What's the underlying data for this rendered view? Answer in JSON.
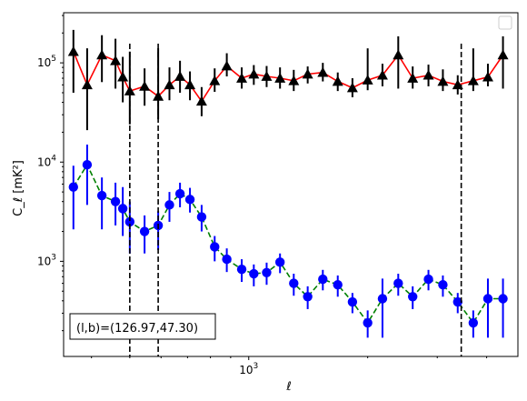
{
  "chart_data": {
    "type": "line",
    "xscale": "log",
    "yscale": "log",
    "xlim": [
      340,
      4800
    ],
    "ylim": [
      110,
      320000
    ],
    "xlabel": "ℓ",
    "ylabel": "C_ℓ  [mK²]",
    "x_ticklabels": [
      {
        "value": 1000,
        "base": "10",
        "exp": "3"
      }
    ],
    "y_ticklabels": [
      {
        "value": 1000,
        "base": "10",
        "exp": "3"
      },
      {
        "value": 10000,
        "base": "10",
        "exp": "4"
      },
      {
        "value": 100000,
        "base": "10",
        "exp": "5"
      }
    ],
    "vlines": [
      500,
      590,
      3450
    ],
    "legend": {
      "location": "top-right",
      "entries": []
    },
    "annotation": "(l,b)=(126.97,47.30)",
    "annotation_location": "bottom-left",
    "series": [
      {
        "color": "#ff0000",
        "marker": "triangle",
        "marker_color": "#000000",
        "linestyle": "solid",
        "x": [
          360,
          390,
          425,
          460,
          480,
          500,
          545,
          590,
          630,
          670,
          710,
          760,
          820,
          880,
          960,
          1030,
          1110,
          1200,
          1300,
          1410,
          1540,
          1680,
          1830,
          2000,
          2180,
          2390,
          2600,
          2850,
          3100,
          3380,
          3700,
          4030,
          4400
        ],
        "y": [
          130000,
          60000,
          120000,
          105000,
          72000,
          52000,
          58000,
          46000,
          60000,
          73000,
          60000,
          41000,
          66000,
          93000,
          70000,
          77000,
          73000,
          70000,
          66000,
          77000,
          80000,
          65000,
          56000,
          67000,
          75000,
          120000,
          70000,
          75000,
          65000,
          60000,
          66000,
          72000,
          120000
        ],
        "yerr_low": [
          50000,
          21000,
          64000,
          55000,
          40000,
          24000,
          37000,
          27000,
          42000,
          50000,
          42000,
          29000,
          51000,
          73000,
          55000,
          60000,
          57000,
          55000,
          52000,
          62000,
          65000,
          52000,
          45000,
          53000,
          58000,
          55000,
          55000,
          58000,
          52000,
          48000,
          52000,
          58000,
          55000
        ],
        "yerr_high": [
          215000,
          140000,
          190000,
          175000,
          115000,
          130000,
          88000,
          140000,
          90000,
          105000,
          82000,
          57000,
          88000,
          125000,
          90000,
          95000,
          93000,
          90000,
          85000,
          92000,
          100000,
          80000,
          70000,
          140000,
          98000,
          185000,
          92000,
          96000,
          86000,
          75000,
          140000,
          98000,
          185000
        ]
      },
      {
        "color": "#008000",
        "marker": "circle",
        "marker_color": "#0000ff",
        "linestyle": "dashed",
        "x": [
          360,
          390,
          425,
          460,
          480,
          500,
          545,
          590,
          630,
          670,
          710,
          760,
          820,
          880,
          960,
          1030,
          1110,
          1200,
          1300,
          1410,
          1540,
          1680,
          1830,
          2000,
          2180,
          2390,
          2600,
          2850,
          3100,
          3380,
          3700,
          4030,
          4400
        ],
        "y": [
          5600,
          9400,
          4600,
          4000,
          3400,
          2500,
          2000,
          2300,
          3700,
          4800,
          4200,
          2800,
          1400,
          1050,
          830,
          750,
          770,
          980,
          600,
          440,
          660,
          580,
          390,
          240,
          420,
          600,
          440,
          660,
          580,
          390,
          240,
          420,
          420
        ],
        "yerr_low": [
          2100,
          3700,
          2100,
          2300,
          1800,
          1200,
          1200,
          1300,
          2500,
          3500,
          3100,
          2000,
          1000,
          780,
          620,
          560,
          580,
          760,
          450,
          330,
          510,
          440,
          300,
          170,
          170,
          450,
          330,
          510,
          440,
          300,
          170,
          170,
          170
        ],
        "yerr_high": [
          9200,
          15000,
          7000,
          6200,
          5600,
          4000,
          2900,
          3200,
          5000,
          6200,
          5500,
          3700,
          1800,
          1350,
          1050,
          930,
          970,
          1200,
          750,
          560,
          820,
          720,
          480,
          320,
          670,
          750,
          560,
          820,
          720,
          480,
          320,
          670,
          670
        ]
      }
    ]
  }
}
